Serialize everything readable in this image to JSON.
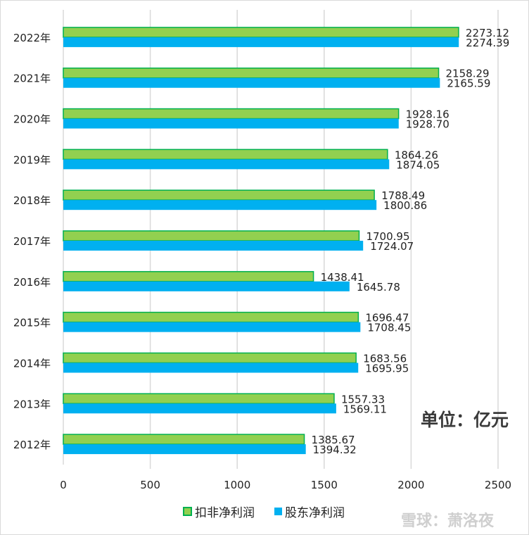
{
  "chart_data": {
    "type": "bar",
    "orientation": "horizontal",
    "categories": [
      "2022年",
      "2021年",
      "2020年",
      "2019年",
      "2018年",
      "2017年",
      "2016年",
      "2015年",
      "2014年",
      "2013年",
      "2012年"
    ],
    "series": [
      {
        "name": "扣非净利润",
        "color": "#92d050",
        "border": "#00b050",
        "values": [
          2273.12,
          2158.29,
          1928.16,
          1864.26,
          1788.49,
          1700.95,
          1438.41,
          1696.47,
          1683.56,
          1557.33,
          1385.67
        ]
      },
      {
        "name": "股东净利润",
        "color": "#00b0f0",
        "values": [
          2274.39,
          2165.59,
          1928.7,
          1874.05,
          1800.86,
          1724.07,
          1645.78,
          1708.45,
          1695.95,
          1569.11,
          1394.32
        ]
      }
    ],
    "xlim": [
      0,
      2500
    ],
    "xticks": [
      0,
      500,
      1000,
      1500,
      2000,
      2500
    ],
    "grid": true,
    "legend": "bottom",
    "annotation": "单位：亿元"
  },
  "watermark": "雪球：萧洛夜"
}
